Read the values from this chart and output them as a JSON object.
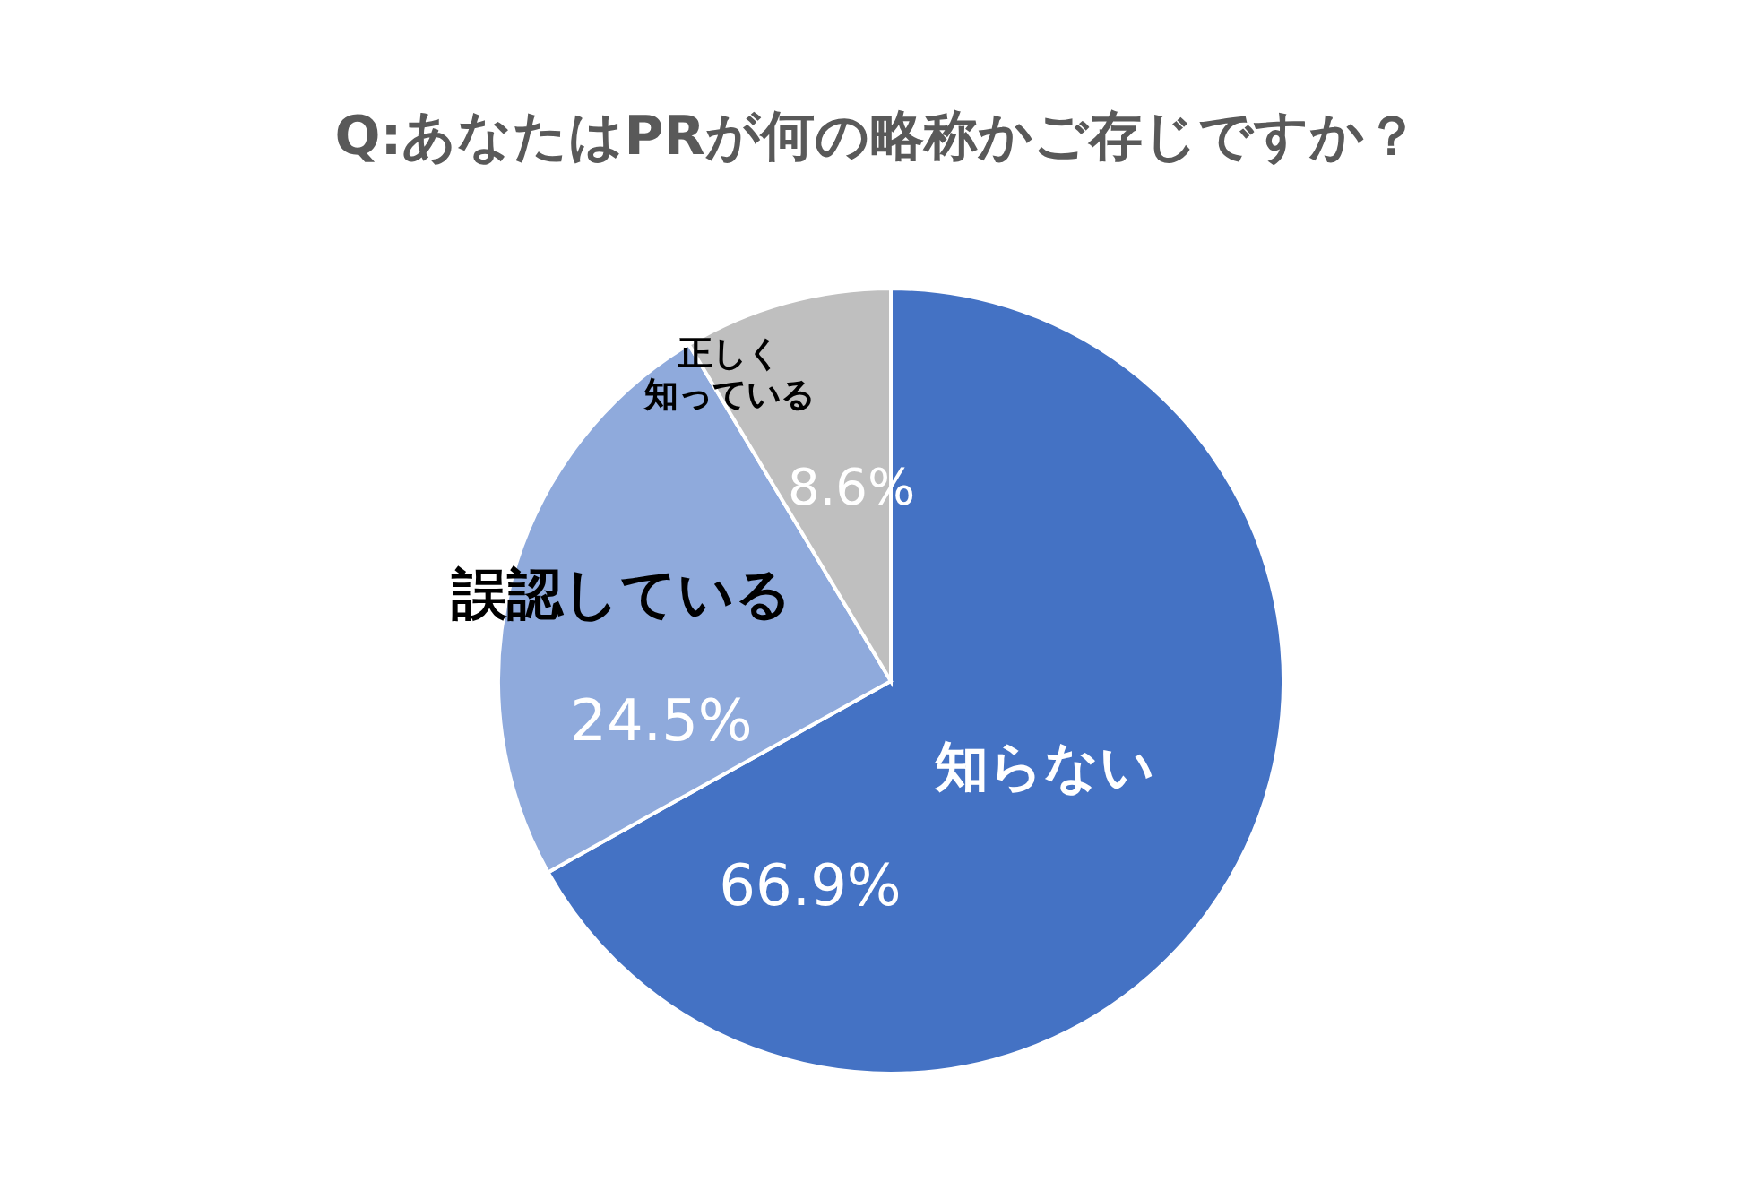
{
  "chart_data": {
    "type": "pie",
    "title": "Q:あなたはPRが何の略称かご存じですか？",
    "categories": [
      "知らない",
      "誤認している",
      "正しく知っている"
    ],
    "values": [
      66.9,
      24.5,
      8.6
    ],
    "colors": [
      "#4472c4",
      "#8faadc",
      "#bfbfbf"
    ],
    "value_labels": [
      "66.9%",
      "24.5%",
      "8.6%"
    ]
  }
}
